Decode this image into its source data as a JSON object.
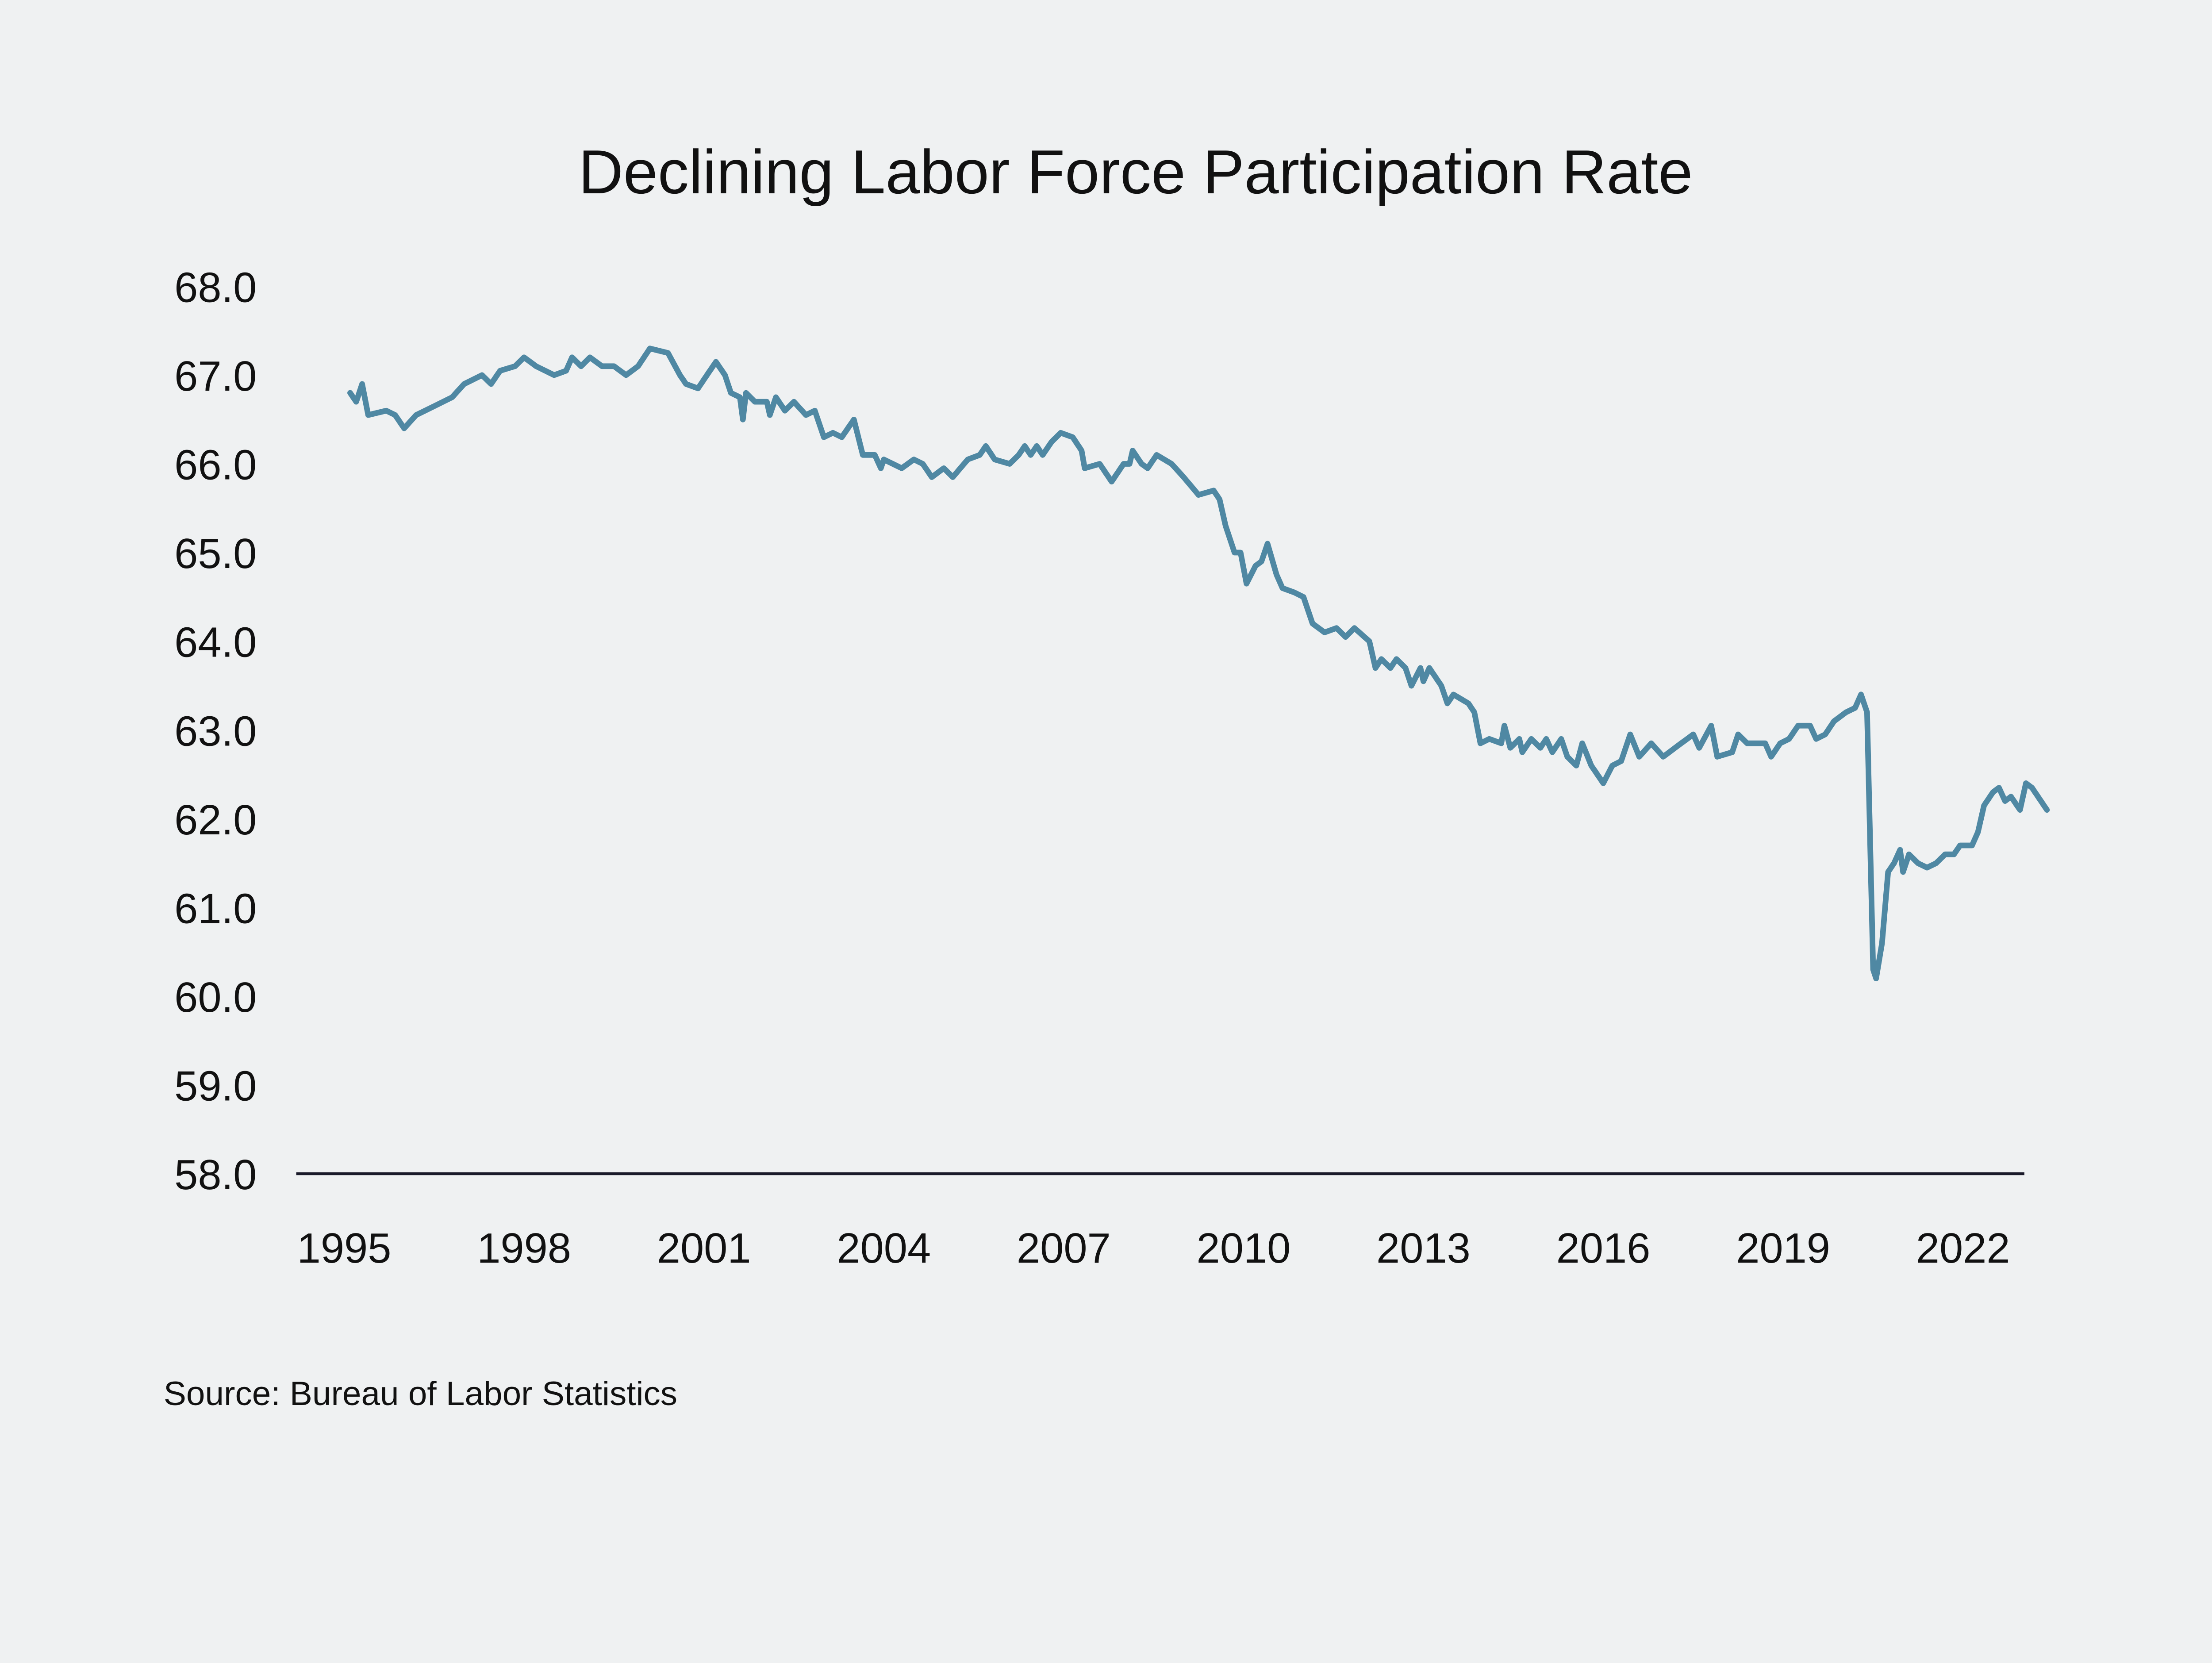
{
  "chart_data": {
    "type": "line",
    "title": "Declining Labor Force Participation Rate",
    "source": "Source: Bureau of Labor Statistics",
    "xlabel": "",
    "ylabel": "",
    "xlim": [
      1995,
      2023
    ],
    "ylim": [
      58.0,
      68.0
    ],
    "x_ticks": [
      "1995",
      "1998",
      "2001",
      "2004",
      "2007",
      "2010",
      "2013",
      "2016",
      "2019",
      "2022"
    ],
    "y_ticks": [
      "58.0",
      "59.0",
      "60.0",
      "61.0",
      "62.0",
      "63.0",
      "64.0",
      "65.0",
      "66.0",
      "67.0",
      "68.0"
    ],
    "grid": false,
    "legend": "none",
    "line_color": "#4f88a3",
    "background_color": "#eff1f2",
    "series": [
      {
        "points": [
          [
            1995.1,
            66.8
          ],
          [
            1995.2,
            66.7
          ],
          [
            1995.3,
            66.9
          ],
          [
            1995.4,
            66.55
          ],
          [
            1995.7,
            66.6
          ],
          [
            1995.85,
            66.55
          ],
          [
            1996.0,
            66.4
          ],
          [
            1996.2,
            66.55
          ],
          [
            1996.5,
            66.65
          ],
          [
            1996.8,
            66.75
          ],
          [
            1997.0,
            66.9
          ],
          [
            1997.3,
            67.0
          ],
          [
            1997.45,
            66.9
          ],
          [
            1997.6,
            67.05
          ],
          [
            1997.85,
            67.1
          ],
          [
            1998.0,
            67.2
          ],
          [
            1998.2,
            67.1
          ],
          [
            1998.5,
            67.0
          ],
          [
            1998.7,
            67.05
          ],
          [
            1998.8,
            67.2
          ],
          [
            1998.95,
            67.1
          ],
          [
            1999.1,
            67.2
          ],
          [
            1999.3,
            67.1
          ],
          [
            1999.5,
            67.1
          ],
          [
            1999.7,
            67.0
          ],
          [
            1999.9,
            67.1
          ],
          [
            2000.1,
            67.3
          ],
          [
            2000.4,
            67.25
          ],
          [
            2000.6,
            67.0
          ],
          [
            2000.7,
            66.9
          ],
          [
            2000.9,
            66.85
          ],
          [
            2001.05,
            67.0
          ],
          [
            2001.2,
            67.15
          ],
          [
            2001.35,
            67.0
          ],
          [
            2001.45,
            66.8
          ],
          [
            2001.6,
            66.75
          ],
          [
            2001.65,
            66.5
          ],
          [
            2001.7,
            66.8
          ],
          [
            2001.85,
            66.7
          ],
          [
            2002.05,
            66.7
          ],
          [
            2002.1,
            66.55
          ],
          [
            2002.2,
            66.75
          ],
          [
            2002.35,
            66.6
          ],
          [
            2002.5,
            66.7
          ],
          [
            2002.7,
            66.55
          ],
          [
            2002.85,
            66.6
          ],
          [
            2003.0,
            66.3
          ],
          [
            2003.15,
            66.35
          ],
          [
            2003.3,
            66.3
          ],
          [
            2003.5,
            66.5
          ],
          [
            2003.65,
            66.1
          ],
          [
            2003.85,
            66.1
          ],
          [
            2003.95,
            65.95
          ],
          [
            2004.0,
            66.05
          ],
          [
            2004.3,
            65.95
          ],
          [
            2004.5,
            66.05
          ],
          [
            2004.65,
            66.0
          ],
          [
            2004.8,
            65.85
          ],
          [
            2005.0,
            65.95
          ],
          [
            2005.15,
            65.85
          ],
          [
            2005.4,
            66.05
          ],
          [
            2005.6,
            66.1
          ],
          [
            2005.7,
            66.2
          ],
          [
            2005.85,
            66.05
          ],
          [
            2006.1,
            66.0
          ],
          [
            2006.25,
            66.1
          ],
          [
            2006.35,
            66.2
          ],
          [
            2006.45,
            66.1
          ],
          [
            2006.55,
            66.2
          ],
          [
            2006.65,
            66.1
          ],
          [
            2006.8,
            66.25
          ],
          [
            2006.95,
            66.35
          ],
          [
            2007.15,
            66.3
          ],
          [
            2007.3,
            66.15
          ],
          [
            2007.35,
            65.95
          ],
          [
            2007.6,
            66.0
          ],
          [
            2007.8,
            65.8
          ],
          [
            2008.0,
            66.0
          ],
          [
            2008.1,
            66.0
          ],
          [
            2008.15,
            66.15
          ],
          [
            2008.3,
            66.0
          ],
          [
            2008.4,
            65.95
          ],
          [
            2008.55,
            66.1
          ],
          [
            2008.8,
            66.0
          ],
          [
            2009.0,
            65.85
          ],
          [
            2009.25,
            65.65
          ],
          [
            2009.5,
            65.7
          ],
          [
            2009.6,
            65.6
          ],
          [
            2009.7,
            65.3
          ],
          [
            2009.85,
            65.0
          ],
          [
            2009.95,
            65.0
          ],
          [
            2010.05,
            64.65
          ],
          [
            2010.2,
            64.85
          ],
          [
            2010.3,
            64.9
          ],
          [
            2010.4,
            65.1
          ],
          [
            2010.55,
            64.75
          ],
          [
            2010.65,
            64.6
          ],
          [
            2010.85,
            64.55
          ],
          [
            2011.0,
            64.5
          ],
          [
            2011.15,
            64.2
          ],
          [
            2011.35,
            64.1
          ],
          [
            2011.55,
            64.15
          ],
          [
            2011.7,
            64.05
          ],
          [
            2011.85,
            64.15
          ],
          [
            2012.1,
            64.0
          ],
          [
            2012.2,
            63.7
          ],
          [
            2012.3,
            63.8
          ],
          [
            2012.45,
            63.7
          ],
          [
            2012.55,
            63.8
          ],
          [
            2012.7,
            63.7
          ],
          [
            2012.8,
            63.5
          ],
          [
            2012.95,
            63.7
          ],
          [
            2013.0,
            63.55
          ],
          [
            2013.1,
            63.7
          ],
          [
            2013.3,
            63.5
          ],
          [
            2013.4,
            63.3
          ],
          [
            2013.5,
            63.4
          ],
          [
            2013.75,
            63.3
          ],
          [
            2013.85,
            63.2
          ],
          [
            2013.95,
            62.85
          ],
          [
            2014.1,
            62.9
          ],
          [
            2014.3,
            62.85
          ],
          [
            2014.35,
            63.05
          ],
          [
            2014.45,
            62.8
          ],
          [
            2014.6,
            62.9
          ],
          [
            2014.65,
            62.75
          ],
          [
            2014.8,
            62.9
          ],
          [
            2014.95,
            62.8
          ],
          [
            2015.05,
            62.9
          ],
          [
            2015.15,
            62.75
          ],
          [
            2015.3,
            62.9
          ],
          [
            2015.4,
            62.7
          ],
          [
            2015.55,
            62.6
          ],
          [
            2015.65,
            62.85
          ],
          [
            2015.8,
            62.6
          ],
          [
            2015.9,
            62.5
          ],
          [
            2016.0,
            62.4
          ],
          [
            2016.15,
            62.6
          ],
          [
            2016.3,
            62.65
          ],
          [
            2016.45,
            62.95
          ],
          [
            2016.6,
            62.7
          ],
          [
            2016.8,
            62.85
          ],
          [
            2017.0,
            62.7
          ],
          [
            2017.3,
            62.85
          ],
          [
            2017.5,
            62.95
          ],
          [
            2017.6,
            62.8
          ],
          [
            2017.8,
            63.05
          ],
          [
            2017.9,
            62.7
          ],
          [
            2018.15,
            62.75
          ],
          [
            2018.25,
            62.95
          ],
          [
            2018.4,
            62.85
          ],
          [
            2018.7,
            62.85
          ],
          [
            2018.8,
            62.7
          ],
          [
            2018.95,
            62.85
          ],
          [
            2019.1,
            62.9
          ],
          [
            2019.25,
            63.05
          ],
          [
            2019.45,
            63.05
          ],
          [
            2019.55,
            62.9
          ],
          [
            2019.7,
            62.95
          ],
          [
            2019.85,
            63.1
          ],
          [
            2020.05,
            63.2
          ],
          [
            2020.2,
            63.25
          ],
          [
            2020.3,
            63.4
          ],
          [
            2020.4,
            63.2
          ],
          [
            2020.5,
            60.3
          ],
          [
            2020.55,
            60.2
          ],
          [
            2020.65,
            60.6
          ],
          [
            2020.75,
            61.4
          ],
          [
            2020.85,
            61.5
          ],
          [
            2020.95,
            61.65
          ],
          [
            2021.0,
            61.4
          ],
          [
            2021.1,
            61.6
          ],
          [
            2021.25,
            61.5
          ],
          [
            2021.4,
            61.45
          ],
          [
            2021.55,
            61.5
          ],
          [
            2021.7,
            61.6
          ],
          [
            2021.85,
            61.6
          ],
          [
            2021.95,
            61.7
          ],
          [
            2022.15,
            61.7
          ],
          [
            2022.25,
            61.85
          ],
          [
            2022.35,
            62.15
          ],
          [
            2022.5,
            62.3
          ],
          [
            2022.6,
            62.35
          ],
          [
            2022.7,
            62.2
          ],
          [
            2022.8,
            62.25
          ],
          [
            2022.95,
            62.1
          ],
          [
            2023.05,
            62.4
          ],
          [
            2023.15,
            62.35
          ],
          [
            2023.4,
            62.1
          ]
        ]
      }
    ]
  }
}
